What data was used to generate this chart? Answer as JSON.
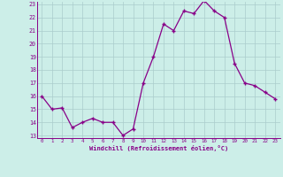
{
  "x": [
    0,
    1,
    2,
    3,
    4,
    5,
    6,
    7,
    8,
    9,
    10,
    11,
    12,
    13,
    14,
    15,
    16,
    17,
    18,
    19,
    20,
    21,
    22,
    23
  ],
  "y": [
    16,
    15,
    15.1,
    13.6,
    14,
    14.3,
    14,
    14,
    13,
    13.5,
    17,
    19,
    21.5,
    21,
    22.5,
    22.3,
    23.3,
    22.5,
    22,
    18.5,
    17,
    16.8,
    16.3,
    15.8
  ],
  "line_color": "#880088",
  "bg_color": "#cceee8",
  "grid_color": "#aacccc",
  "axis_color": "#880088",
  "xlabel": "Windchill (Refroidissement éolien,°C)",
  "ylim": [
    13,
    23
  ],
  "xlim": [
    -0.5,
    23.5
  ],
  "yticks": [
    13,
    14,
    15,
    16,
    17,
    18,
    19,
    20,
    21,
    22,
    23
  ],
  "xticks": [
    0,
    1,
    2,
    3,
    4,
    5,
    6,
    7,
    8,
    9,
    10,
    11,
    12,
    13,
    14,
    15,
    16,
    17,
    18,
    19,
    20,
    21,
    22,
    23
  ]
}
